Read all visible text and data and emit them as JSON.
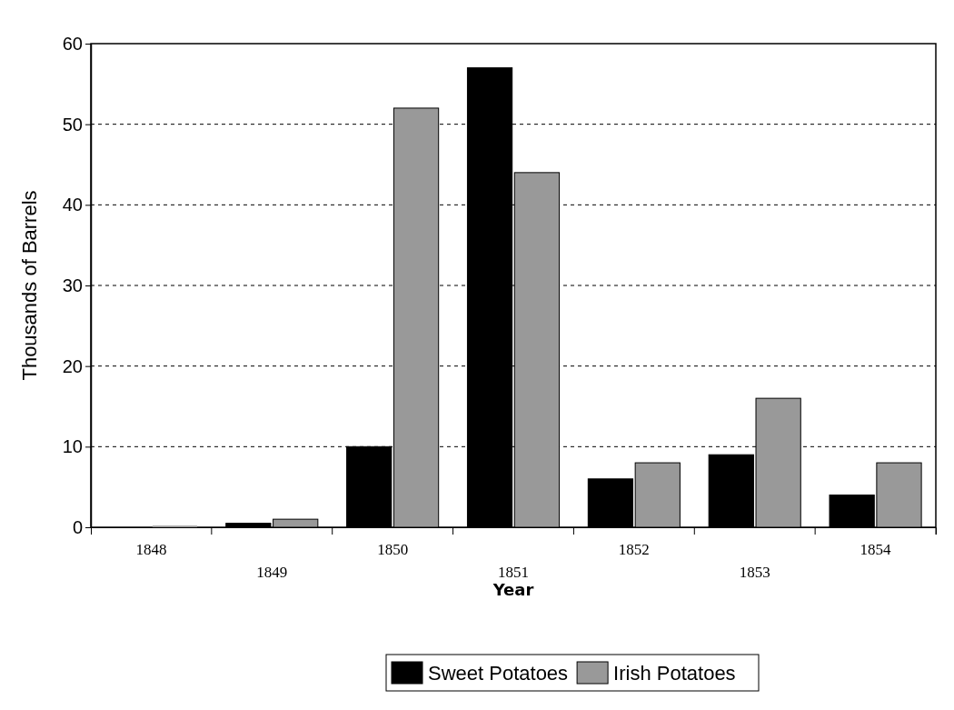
{
  "chart_data": {
    "type": "bar",
    "xlabel": "Year",
    "ylabel": "Thousands of Barrels",
    "categories": [
      "1848",
      "1849",
      "1850",
      "1851",
      "1852",
      "1853",
      "1854"
    ],
    "series": [
      {
        "name": "Sweet Potatoes",
        "color": "#000000",
        "values": [
          null,
          0.5,
          10,
          57,
          6,
          9,
          4
        ]
      },
      {
        "name": "Irish Potatoes",
        "color": "#999999",
        "values": [
          0.2,
          1,
          52,
          44,
          8,
          16,
          8
        ]
      }
    ],
    "ylim": [
      0,
      60
    ],
    "yticks": [
      0,
      10,
      20,
      30,
      40,
      50,
      60
    ],
    "grid": "y",
    "legend": "bottom"
  }
}
